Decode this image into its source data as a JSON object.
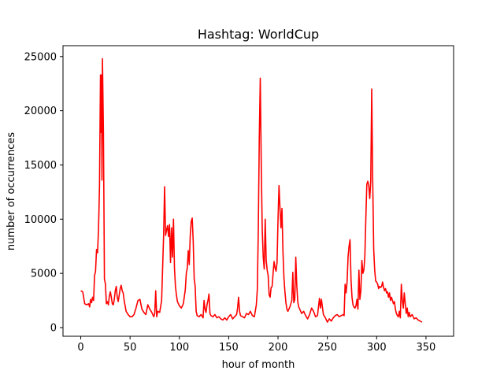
{
  "chart_data": {
    "type": "line",
    "title": "Hashtag: WorldCup",
    "xlabel": "hour of month",
    "ylabel": "number of occurrences",
    "xlim": [
      -18,
      378
    ],
    "ylim": [
      -800,
      26000
    ],
    "xticks": [
      0,
      50,
      100,
      150,
      200,
      250,
      300,
      350
    ],
    "yticks": [
      0,
      5000,
      10000,
      15000,
      20000,
      25000
    ],
    "grid": false,
    "series": [
      {
        "color": "#ff0000",
        "points": [
          [
            0,
            3400
          ],
          [
            2,
            3300
          ],
          [
            4,
            2200
          ],
          [
            6,
            2100
          ],
          [
            8,
            2200
          ],
          [
            9,
            1900
          ],
          [
            10,
            2600
          ],
          [
            11,
            2300
          ],
          [
            12,
            2800
          ],
          [
            13,
            2500
          ],
          [
            14,
            4800
          ],
          [
            15,
            5200
          ],
          [
            16,
            7200
          ],
          [
            17,
            6900
          ],
          [
            18,
            9000
          ],
          [
            19,
            13000
          ],
          [
            20,
            23300
          ],
          [
            20.5,
            18000
          ],
          [
            21,
            23300
          ],
          [
            21.5,
            13600
          ],
          [
            22,
            24800
          ],
          [
            23,
            18000
          ],
          [
            24,
            4500
          ],
          [
            25,
            4000
          ],
          [
            26,
            2200
          ],
          [
            27,
            2400
          ],
          [
            28,
            2100
          ],
          [
            29,
            2900
          ],
          [
            30,
            3300
          ],
          [
            31,
            2800
          ],
          [
            32,
            2200
          ],
          [
            33,
            2100
          ],
          [
            34,
            2600
          ],
          [
            35,
            3400
          ],
          [
            36,
            3800
          ],
          [
            37,
            2800
          ],
          [
            38,
            2400
          ],
          [
            39,
            3000
          ],
          [
            40,
            3600
          ],
          [
            41,
            3900
          ],
          [
            42,
            3400
          ],
          [
            43,
            3200
          ],
          [
            44,
            2500
          ],
          [
            46,
            1500
          ],
          [
            48,
            1200
          ],
          [
            50,
            1000
          ],
          [
            52,
            1000
          ],
          [
            54,
            1200
          ],
          [
            56,
            1800
          ],
          [
            58,
            2500
          ],
          [
            60,
            2600
          ],
          [
            62,
            1700
          ],
          [
            64,
            1400
          ],
          [
            66,
            1200
          ],
          [
            68,
            2100
          ],
          [
            70,
            1700
          ],
          [
            72,
            1400
          ],
          [
            74,
            1000
          ],
          [
            75,
            1300
          ],
          [
            76,
            3400
          ],
          [
            77,
            1000
          ],
          [
            78,
            1500
          ],
          [
            80,
            1400
          ],
          [
            82,
            2500
          ],
          [
            84,
            8500
          ],
          [
            85,
            13000
          ],
          [
            86,
            8500
          ],
          [
            87,
            9000
          ],
          [
            88,
            9400
          ],
          [
            89,
            8400
          ],
          [
            90,
            9500
          ],
          [
            91,
            6000
          ],
          [
            92,
            9200
          ],
          [
            93,
            6500
          ],
          [
            94,
            10000
          ],
          [
            95,
            5500
          ],
          [
            96,
            3800
          ],
          [
            97,
            3000
          ],
          [
            98,
            2400
          ],
          [
            100,
            2000
          ],
          [
            102,
            1800
          ],
          [
            104,
            2200
          ],
          [
            106,
            3500
          ],
          [
            107,
            5000
          ],
          [
            108,
            5500
          ],
          [
            109,
            7100
          ],
          [
            110,
            5800
          ],
          [
            111,
            8500
          ],
          [
            112,
            9800
          ],
          [
            113,
            10100
          ],
          [
            114,
            8000
          ],
          [
            115,
            4500
          ],
          [
            116,
            3800
          ],
          [
            117,
            1500
          ],
          [
            118,
            1100
          ],
          [
            120,
            1000
          ],
          [
            122,
            1200
          ],
          [
            124,
            900
          ],
          [
            125,
            2500
          ],
          [
            126,
            1700
          ],
          [
            127,
            1400
          ],
          [
            128,
            2100
          ],
          [
            129,
            2500
          ],
          [
            130,
            3100
          ],
          [
            131,
            1300
          ],
          [
            132,
            1100
          ],
          [
            134,
            1000
          ],
          [
            136,
            1200
          ],
          [
            138,
            900
          ],
          [
            140,
            1000
          ],
          [
            142,
            800
          ],
          [
            144,
            700
          ],
          [
            146,
            900
          ],
          [
            148,
            700
          ],
          [
            150,
            1000
          ],
          [
            152,
            1200
          ],
          [
            154,
            800
          ],
          [
            156,
            1000
          ],
          [
            158,
            1200
          ],
          [
            159,
            1800
          ],
          [
            160,
            2800
          ],
          [
            161,
            1500
          ],
          [
            162,
            1100
          ],
          [
            164,
            1000
          ],
          [
            166,
            900
          ],
          [
            168,
            1300
          ],
          [
            170,
            1200
          ],
          [
            172,
            1500
          ],
          [
            174,
            1100
          ],
          [
            176,
            1000
          ],
          [
            178,
            2100
          ],
          [
            179,
            3500
          ],
          [
            180,
            9000
          ],
          [
            181,
            17500
          ],
          [
            182,
            23000
          ],
          [
            183,
            15000
          ],
          [
            184,
            9000
          ],
          [
            185,
            6500
          ],
          [
            186,
            5400
          ],
          [
            187,
            10000
          ],
          [
            188,
            6200
          ],
          [
            189,
            5300
          ],
          [
            190,
            4800
          ],
          [
            191,
            3000
          ],
          [
            192,
            2800
          ],
          [
            193,
            3700
          ],
          [
            194,
            3800
          ],
          [
            195,
            5000
          ],
          [
            196,
            6100
          ],
          [
            197,
            5500
          ],
          [
            198,
            5200
          ],
          [
            199,
            6000
          ],
          [
            200,
            10000
          ],
          [
            201,
            13100
          ],
          [
            202,
            11000
          ],
          [
            203,
            9200
          ],
          [
            204,
            11000
          ],
          [
            205,
            7000
          ],
          [
            206,
            4600
          ],
          [
            207,
            3300
          ],
          [
            208,
            2300
          ],
          [
            209,
            1700
          ],
          [
            210,
            1500
          ],
          [
            212,
            1900
          ],
          [
            214,
            2500
          ],
          [
            215,
            5100
          ],
          [
            216,
            2300
          ],
          [
            217,
            2600
          ],
          [
            218,
            6500
          ],
          [
            219,
            3900
          ],
          [
            220,
            2400
          ],
          [
            221,
            1900
          ],
          [
            222,
            1700
          ],
          [
            224,
            1300
          ],
          [
            226,
            1500
          ],
          [
            228,
            1100
          ],
          [
            230,
            800
          ],
          [
            232,
            1200
          ],
          [
            234,
            1800
          ],
          [
            236,
            1500
          ],
          [
            238,
            1000
          ],
          [
            240,
            1100
          ],
          [
            242,
            2700
          ],
          [
            243,
            1800
          ],
          [
            244,
            2600
          ],
          [
            245,
            1900
          ],
          [
            246,
            1200
          ],
          [
            248,
            900
          ],
          [
            250,
            500
          ],
          [
            252,
            800
          ],
          [
            254,
            600
          ],
          [
            256,
            900
          ],
          [
            258,
            1100
          ],
          [
            260,
            1200
          ],
          [
            262,
            1000
          ],
          [
            264,
            1100
          ],
          [
            266,
            1200
          ],
          [
            267,
            1100
          ],
          [
            268,
            4000
          ],
          [
            269,
            3200
          ],
          [
            270,
            4200
          ],
          [
            271,
            6500
          ],
          [
            272,
            7500
          ],
          [
            273,
            8100
          ],
          [
            274,
            4400
          ],
          [
            275,
            2800
          ],
          [
            276,
            2100
          ],
          [
            277,
            1900
          ],
          [
            278,
            1800
          ],
          [
            279,
            2000
          ],
          [
            280,
            2600
          ],
          [
            281,
            1700
          ],
          [
            282,
            5300
          ],
          [
            283,
            2600
          ],
          [
            284,
            3400
          ],
          [
            285,
            6200
          ],
          [
            286,
            5000
          ],
          [
            287,
            5300
          ],
          [
            288,
            6500
          ],
          [
            289,
            10000
          ],
          [
            290,
            13200
          ],
          [
            291,
            13500
          ],
          [
            292,
            13100
          ],
          [
            293,
            11900
          ],
          [
            294,
            13500
          ],
          [
            295,
            22000
          ],
          [
            296,
            13500
          ],
          [
            297,
            7200
          ],
          [
            298,
            5300
          ],
          [
            299,
            4300
          ],
          [
            300,
            4200
          ],
          [
            301,
            4000
          ],
          [
            302,
            3600
          ],
          [
            303,
            3800
          ],
          [
            304,
            3700
          ],
          [
            305,
            3800
          ],
          [
            306,
            4200
          ],
          [
            307,
            3700
          ],
          [
            308,
            3400
          ],
          [
            309,
            3600
          ],
          [
            310,
            3200
          ],
          [
            311,
            3300
          ],
          [
            312,
            2800
          ],
          [
            313,
            3200
          ],
          [
            314,
            2500
          ],
          [
            315,
            2800
          ],
          [
            316,
            2500
          ],
          [
            317,
            2200
          ],
          [
            318,
            2400
          ],
          [
            319,
            1700
          ],
          [
            320,
            1300
          ],
          [
            321,
            1100
          ],
          [
            322,
            1000
          ],
          [
            323,
            1500
          ],
          [
            324,
            900
          ],
          [
            325,
            4000
          ],
          [
            326,
            2500
          ],
          [
            327,
            1800
          ],
          [
            328,
            3200
          ],
          [
            329,
            2200
          ],
          [
            330,
            1300
          ],
          [
            331,
            1800
          ],
          [
            332,
            1000
          ],
          [
            333,
            1400
          ],
          [
            334,
            1000
          ],
          [
            336,
            1200
          ],
          [
            338,
            800
          ],
          [
            340,
            900
          ],
          [
            342,
            700
          ],
          [
            344,
            600
          ],
          [
            346,
            500
          ]
        ]
      }
    ]
  }
}
